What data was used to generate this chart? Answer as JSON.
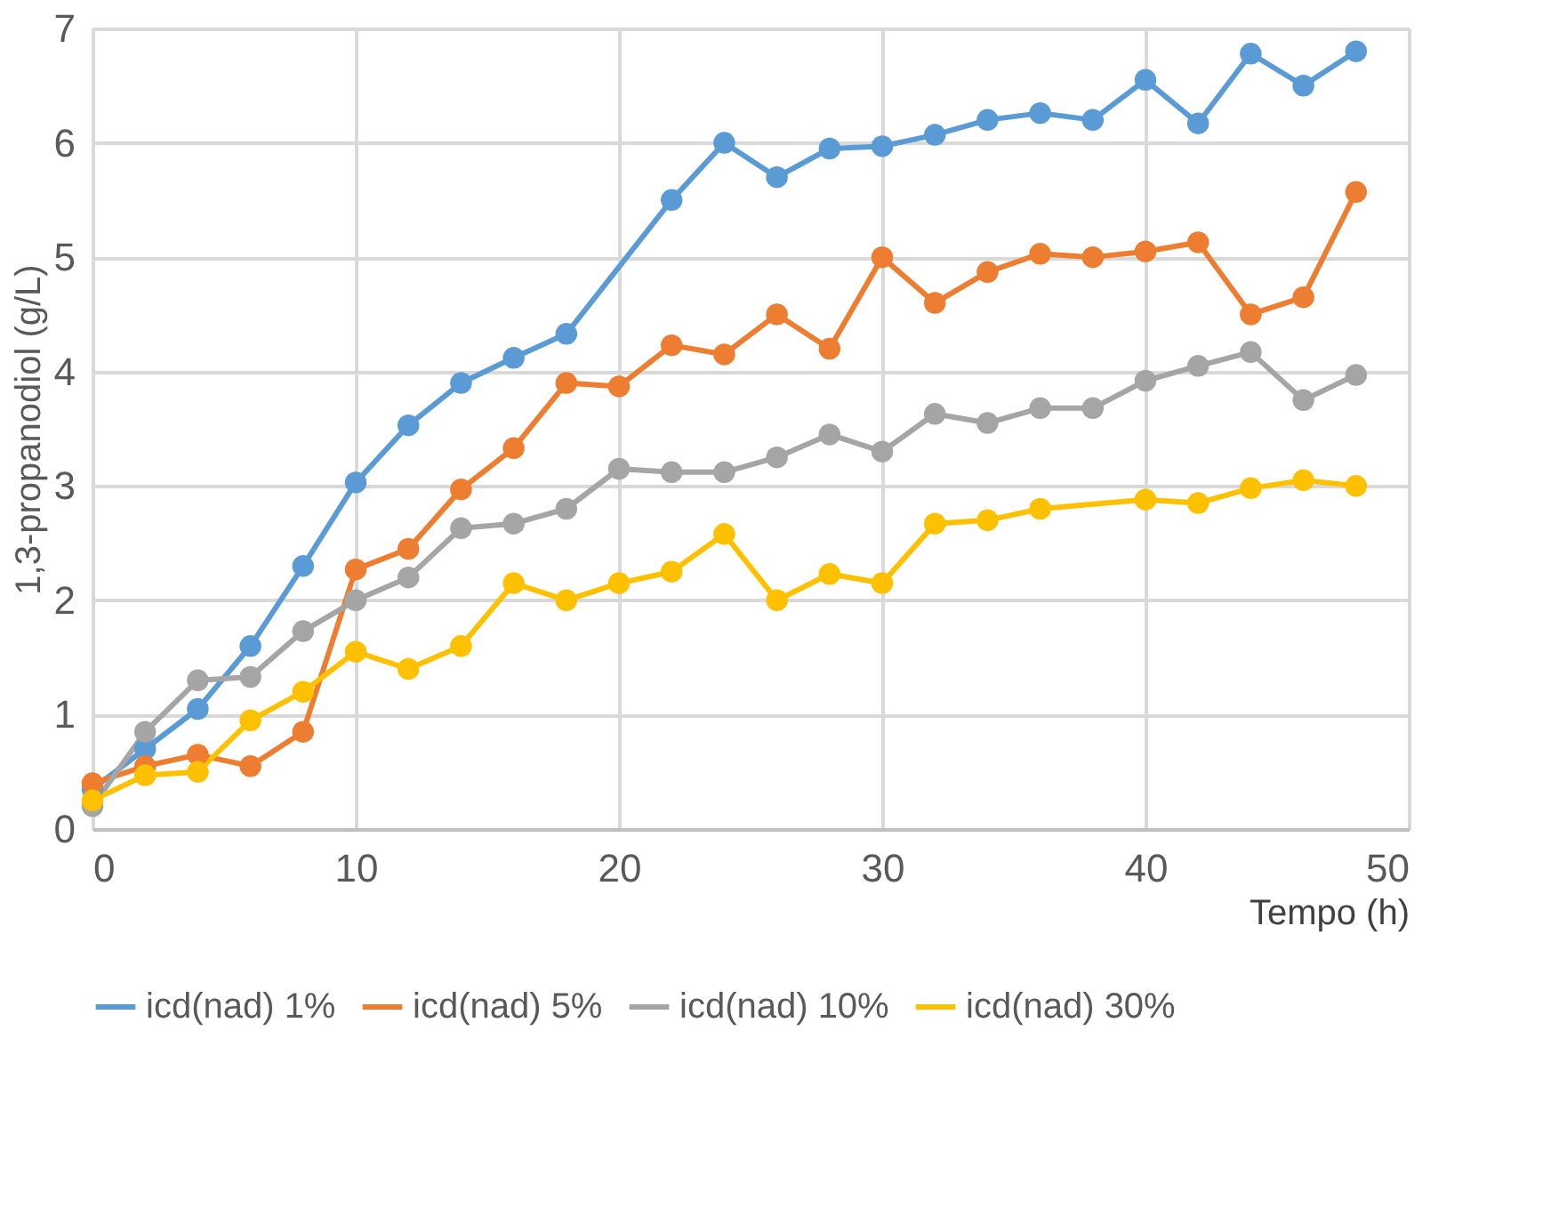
{
  "chart_data": {
    "type": "line",
    "xlabel": "Tempo (h)",
    "ylabel": "1,3-propanodiol (g/L)",
    "xlim": [
      0,
      50
    ],
    "ylim": [
      0,
      7
    ],
    "xticks": [
      0,
      10,
      20,
      30,
      40,
      50
    ],
    "yticks": [
      0,
      1,
      2,
      3,
      4,
      5,
      6,
      7
    ],
    "grid": true,
    "legend": "bottom",
    "marker": "circle",
    "line_style": "solid",
    "series": [
      {
        "name": "icd(nad) 1%",
        "color": "#5b9bd5",
        "x": [
          0,
          2,
          4,
          6,
          8,
          10,
          12,
          14,
          16,
          18,
          22,
          24,
          26,
          28,
          30,
          32,
          34,
          36,
          38,
          40,
          42,
          44,
          46,
          48
        ],
        "values": [
          0.35,
          0.7,
          1.05,
          1.6,
          2.3,
          3.03,
          3.53,
          3.9,
          4.12,
          4.33,
          5.5,
          6.0,
          5.7,
          5.95,
          5.97,
          6.07,
          6.2,
          6.26,
          6.2,
          6.55,
          6.17,
          6.78,
          6.5,
          6.8
        ]
      },
      {
        "name": "icd(nad) 5%",
        "color": "#ed7d31",
        "x": [
          0,
          2,
          4,
          6,
          8,
          10,
          12,
          14,
          16,
          18,
          20,
          22,
          24,
          26,
          28,
          30,
          32,
          34,
          36,
          38,
          40,
          42,
          44,
          46,
          48
        ],
        "values": [
          0.4,
          0.55,
          0.65,
          0.55,
          0.85,
          2.27,
          2.45,
          2.97,
          3.33,
          3.9,
          3.87,
          4.23,
          4.15,
          4.5,
          4.2,
          5.0,
          4.6,
          4.87,
          5.03,
          5.0,
          5.05,
          5.13,
          4.5,
          4.65,
          5.57
        ]
      },
      {
        "name": "icd(nad) 10%",
        "color": "#a5a5a5",
        "x": [
          0,
          2,
          4,
          6,
          8,
          10,
          12,
          14,
          16,
          18,
          20,
          22,
          24,
          26,
          28,
          30,
          32,
          34,
          36,
          38,
          40,
          42,
          44,
          46,
          48
        ],
        "values": [
          0.2,
          0.85,
          1.3,
          1.33,
          1.73,
          2.0,
          2.2,
          2.63,
          2.67,
          2.8,
          3.15,
          3.12,
          3.12,
          3.25,
          3.45,
          3.3,
          3.63,
          3.55,
          3.68,
          3.68,
          3.92,
          4.05,
          4.17,
          3.75,
          3.97
        ]
      },
      {
        "name": "icd(nad) 30%",
        "color": "#ffc000",
        "x": [
          0,
          2,
          4,
          6,
          8,
          10,
          12,
          14,
          16,
          18,
          20,
          22,
          24,
          26,
          28,
          30,
          32,
          34,
          36,
          40,
          42,
          44,
          46,
          48
        ],
        "values": [
          0.25,
          0.47,
          0.5,
          0.95,
          1.2,
          1.55,
          1.4,
          1.6,
          2.15,
          2.0,
          2.15,
          2.25,
          2.58,
          2.0,
          2.23,
          2.15,
          2.67,
          2.7,
          2.8,
          2.88,
          2.85,
          2.98,
          3.05,
          3.0
        ]
      }
    ]
  }
}
